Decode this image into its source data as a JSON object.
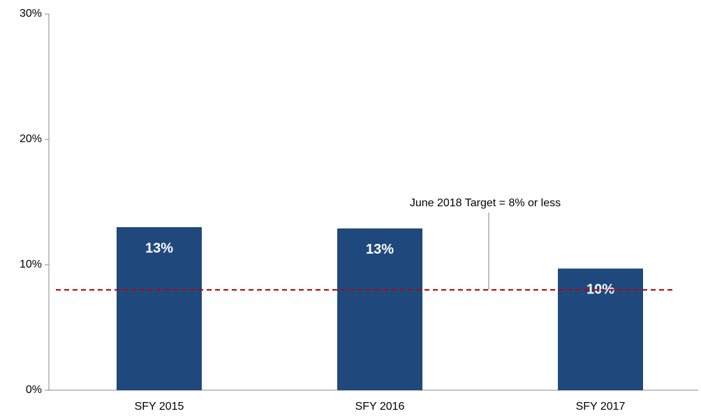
{
  "chart_data": {
    "type": "bar",
    "categories": [
      "SFY 2015",
      "SFY 2016",
      "SFY 2017"
    ],
    "values": [
      13,
      12.9,
      9.7
    ],
    "value_labels": [
      "13%",
      "13%",
      "10%"
    ],
    "color": "#1f497d",
    "ylim": [
      0,
      30
    ],
    "yticks": [
      {
        "value": 0,
        "label": "0%"
      },
      {
        "value": 10,
        "label": "10%"
      },
      {
        "value": 20,
        "label": "20%"
      },
      {
        "value": 30,
        "label": "30%"
      }
    ],
    "target": {
      "value": 8,
      "label": "June 2018 Target = 8% or less",
      "color": "#c00000"
    }
  }
}
